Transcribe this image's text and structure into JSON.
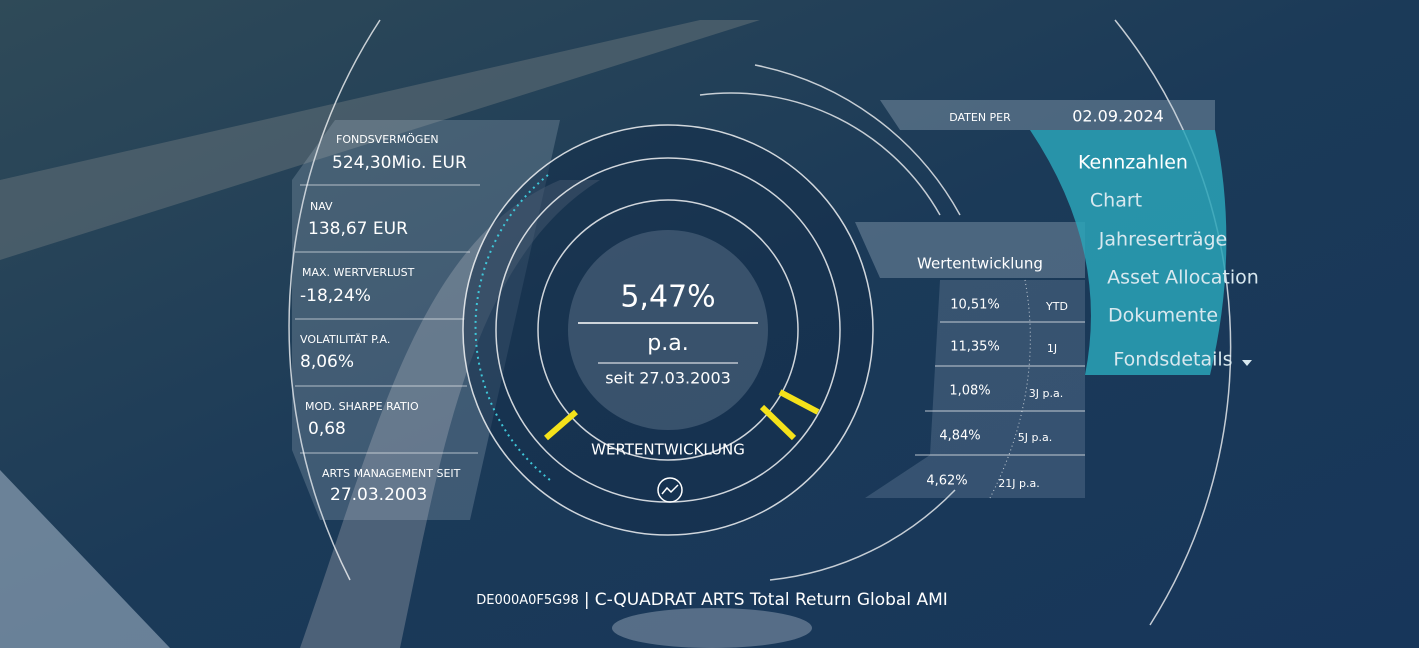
{
  "date": {
    "label": "DATEN PER",
    "value": "02.09.2024"
  },
  "menu": {
    "items": [
      "Kennzahlen",
      "Chart",
      "Jahreserträge",
      "Asset Allocation",
      "Dokumente",
      "Fondsdetails"
    ]
  },
  "stats": [
    {
      "label": "FONDSVERMÖGEN",
      "value": "524,30Mio. EUR"
    },
    {
      "label": "NAV",
      "value": "138,67 EUR"
    },
    {
      "label": "MAX. WERTVERLUST",
      "value": "-18,24%"
    },
    {
      "label": "VOLATILITÄT P.A.",
      "value": "8,06%"
    },
    {
      "label": "MOD. SHARPE RATIO",
      "value": "0,68"
    },
    {
      "label": "ARTS MANAGEMENT SEIT",
      "value": "27.03.2003"
    }
  ],
  "gauge": {
    "value": "5,47%",
    "unit": "p.a.",
    "since": "seit 27.03.2003",
    "label": "WERTENTWICKLUNG"
  },
  "performance": {
    "title": "Wertentwicklung",
    "rows": [
      {
        "value": "10,51%",
        "period": "YTD"
      },
      {
        "value": "11,35%",
        "period": "1J"
      },
      {
        "value": "1,08%",
        "period": "3J p.a."
      },
      {
        "value": "4,84%",
        "period": "5J p.a."
      },
      {
        "value": "4,62%",
        "period": "21J p.a."
      }
    ]
  },
  "footer": {
    "isin": "DE000A0F5G98",
    "separator": "|",
    "name": "C-QUADRAT ARTS Total Return Global AMI"
  }
}
